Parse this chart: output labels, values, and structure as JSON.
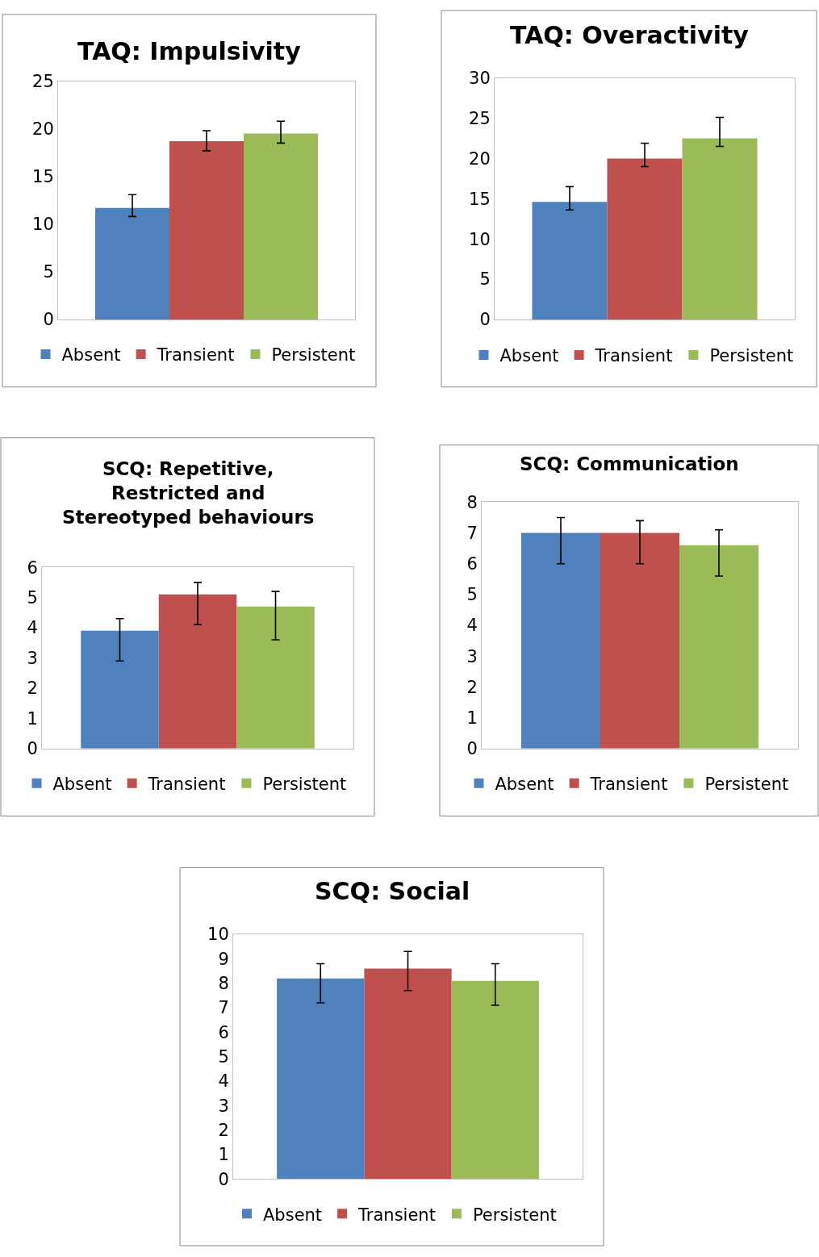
{
  "chart_data": [
    {
      "type": "bar",
      "title": "TAQ: Impulsivity",
      "categories": [
        null
      ],
      "ylim": [
        0,
        25
      ],
      "yticks": [
        0,
        5,
        10,
        15,
        20,
        25
      ],
      "legend": "bottom",
      "series": [
        {
          "name": "Absent",
          "color": "#4f81bd",
          "values": [
            11.7
          ],
          "errors": [
            [
              10.8,
              13.1
            ]
          ]
        },
        {
          "name": "Transient",
          "color": "#c0504d",
          "values": [
            18.7
          ],
          "errors": [
            [
              17.7,
              19.8
            ]
          ]
        },
        {
          "name": "Persistent",
          "color": "#9bbb59",
          "values": [
            19.5
          ],
          "errors": [
            [
              18.5,
              20.8
            ]
          ]
        }
      ]
    },
    {
      "type": "bar",
      "title": "TAQ: Overactivity",
      "categories": [
        null
      ],
      "ylim": [
        0,
        30
      ],
      "yticks": [
        0,
        5,
        10,
        15,
        20,
        25,
        30
      ],
      "legend": "bottom",
      "series": [
        {
          "name": "Absent",
          "color": "#4f81bd",
          "values": [
            14.6
          ],
          "errors": [
            [
              13.6,
              16.5
            ]
          ]
        },
        {
          "name": "Transient",
          "color": "#c0504d",
          "values": [
            20.0
          ],
          "errors": [
            [
              19.0,
              21.9
            ]
          ]
        },
        {
          "name": "Persistent",
          "color": "#9bbb59",
          "values": [
            22.5
          ],
          "errors": [
            [
              21.5,
              25.1
            ]
          ]
        }
      ]
    },
    {
      "type": "bar",
      "title": "SCQ: Repetitive, Restricted and Stereotyped behaviours",
      "categories": [
        null
      ],
      "ylim": [
        0,
        6
      ],
      "yticks": [
        0,
        1,
        2,
        3,
        4,
        5,
        6
      ],
      "legend": "bottom",
      "series": [
        {
          "name": "Absent",
          "color": "#4f81bd",
          "values": [
            3.9
          ],
          "errors": [
            [
              2.9,
              4.3
            ]
          ]
        },
        {
          "name": "Transient",
          "color": "#c0504d",
          "values": [
            5.1
          ],
          "errors": [
            [
              4.1,
              5.5
            ]
          ]
        },
        {
          "name": "Persistent",
          "color": "#9bbb59",
          "values": [
            4.7
          ],
          "errors": [
            [
              3.6,
              5.2
            ]
          ]
        }
      ]
    },
    {
      "type": "bar",
      "title": "SCQ: Communication",
      "categories": [
        null
      ],
      "ylim": [
        0,
        8
      ],
      "yticks": [
        0,
        1,
        2,
        3,
        4,
        5,
        6,
        7,
        8
      ],
      "legend": "bottom",
      "series": [
        {
          "name": "Absent",
          "color": "#4f81bd",
          "values": [
            7.0
          ],
          "errors": [
            [
              6.0,
              7.5
            ]
          ]
        },
        {
          "name": "Transient",
          "color": "#c0504d",
          "values": [
            7.0
          ],
          "errors": [
            [
              6.0,
              7.4
            ]
          ]
        },
        {
          "name": "Persistent",
          "color": "#9bbb59",
          "values": [
            6.6
          ],
          "errors": [
            [
              5.6,
              7.1
            ]
          ]
        }
      ]
    },
    {
      "type": "bar",
      "title": "SCQ: Social",
      "categories": [
        null
      ],
      "ylim": [
        0,
        10
      ],
      "yticks": [
        0,
        1,
        2,
        3,
        4,
        5,
        6,
        7,
        8,
        9,
        10
      ],
      "legend": "bottom",
      "series": [
        {
          "name": "Absent",
          "color": "#4f81bd",
          "values": [
            8.2
          ],
          "errors": [
            [
              7.2,
              8.8
            ]
          ]
        },
        {
          "name": "Transient",
          "color": "#c0504d",
          "values": [
            8.6
          ],
          "errors": [
            [
              7.7,
              9.3
            ]
          ]
        },
        {
          "name": "Persistent",
          "color": "#9bbb59",
          "values": [
            8.1
          ],
          "errors": [
            [
              7.1,
              8.8
            ]
          ]
        }
      ]
    }
  ]
}
